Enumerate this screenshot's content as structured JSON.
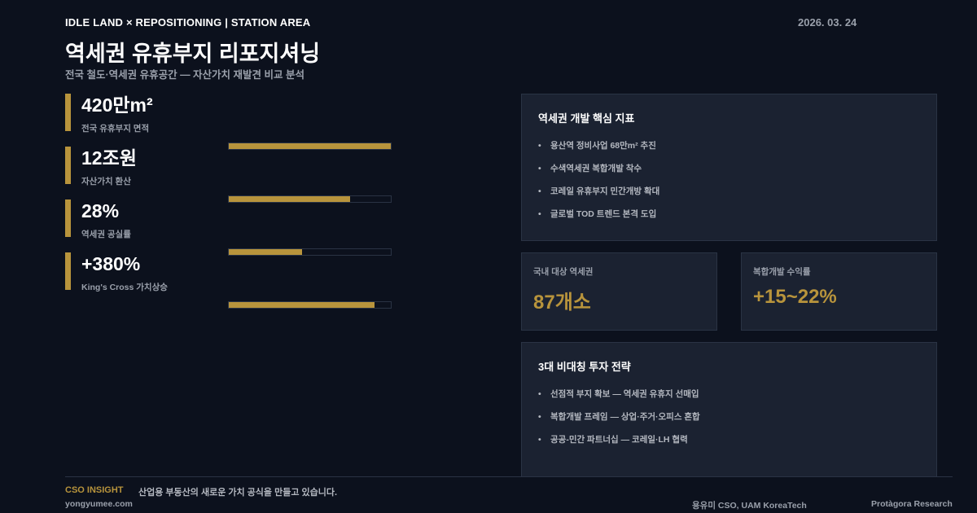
{
  "header": {
    "kicker": "IDLE LAND × REPOSITIONING | STATION AREA",
    "date": "2026. 03. 24",
    "title": "역세권 유휴부지 리포지셔닝",
    "subtitle": "전국 철도·역세권 유휴공간 — 자산가치 재발견 비교 분석"
  },
  "stats": [
    {
      "value": "420만m²",
      "label": "전국 유휴부지 면적",
      "bar_percent": 100
    },
    {
      "value": "12조원",
      "label": "자산가치 환산",
      "bar_percent": 75
    },
    {
      "value": "28%",
      "label": "역세권 공실률",
      "bar_percent": 45
    },
    {
      "value": "+380%",
      "label": "King's Cross 가치상승",
      "bar_percent": 90
    }
  ],
  "indicators": {
    "title": "역세권 개발 핵심 지표",
    "items": [
      "용산역 정비사업 68만m² 추진",
      "수색역세권 복합개발 착수",
      "코레일 유휴부지 민간개방 확대",
      "글로벌 TOD 트렌드 본격 도입"
    ]
  },
  "cards": [
    {
      "label": "국내 대상 역세권",
      "value": "87개소"
    },
    {
      "label": "복합개발 수익률",
      "value": "+15~22%"
    }
  ],
  "strategy": {
    "title": "3대 비대칭 투자 전략",
    "items": [
      "선점적 부지 확보 — 역세권 유휴지 선매입",
      "복합개발 프레임 — 상업·주거·오피스 혼합",
      "공공-민간 파트너십 — 코레일·LH 협력"
    ]
  },
  "footer": {
    "insight_label": "CSO INSIGHT",
    "insight_text": "산업용 부동산의 새로운 가치 공식을 만들고 있습니다.",
    "website": "yongyumee.com",
    "author": "용유미 CSO, UAM KoreaTech",
    "org": "Protàgora Research"
  },
  "colors": {
    "accent": "#b8943c",
    "background": "#0c111d",
    "panel": "#1b2231"
  }
}
